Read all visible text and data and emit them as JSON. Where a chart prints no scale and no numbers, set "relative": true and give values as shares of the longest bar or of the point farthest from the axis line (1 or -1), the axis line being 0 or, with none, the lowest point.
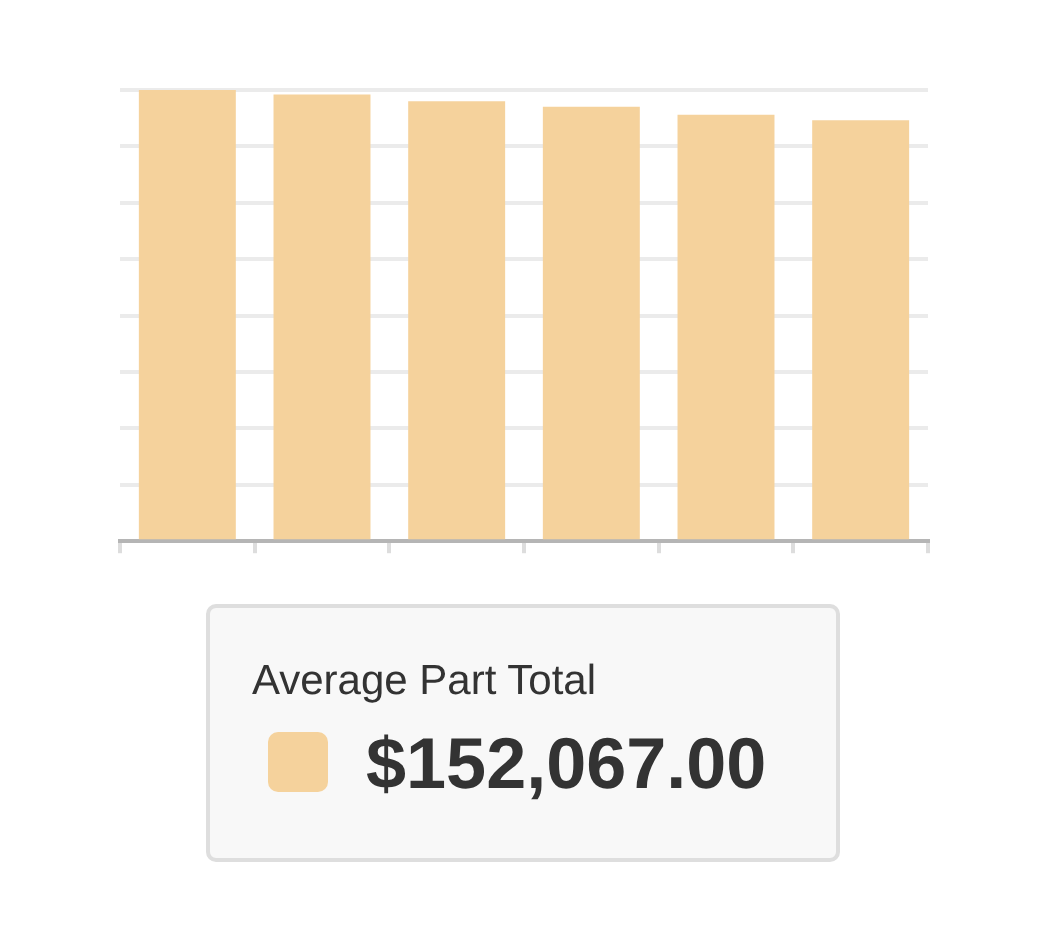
{
  "chart_data": {
    "type": "bar",
    "relative": true,
    "categories": [
      null,
      null,
      null,
      null,
      null,
      null
    ],
    "series": [
      {
        "name": "Average Part Total",
        "color": "#f5d29c",
        "values": [
          1,
          0.99,
          0.975,
          0.963,
          0.945,
          0.933
        ]
      }
    ],
    "annotations": [
      "$152,067.00"
    ],
    "grid": "y",
    "legend": "bottom"
  }
}
